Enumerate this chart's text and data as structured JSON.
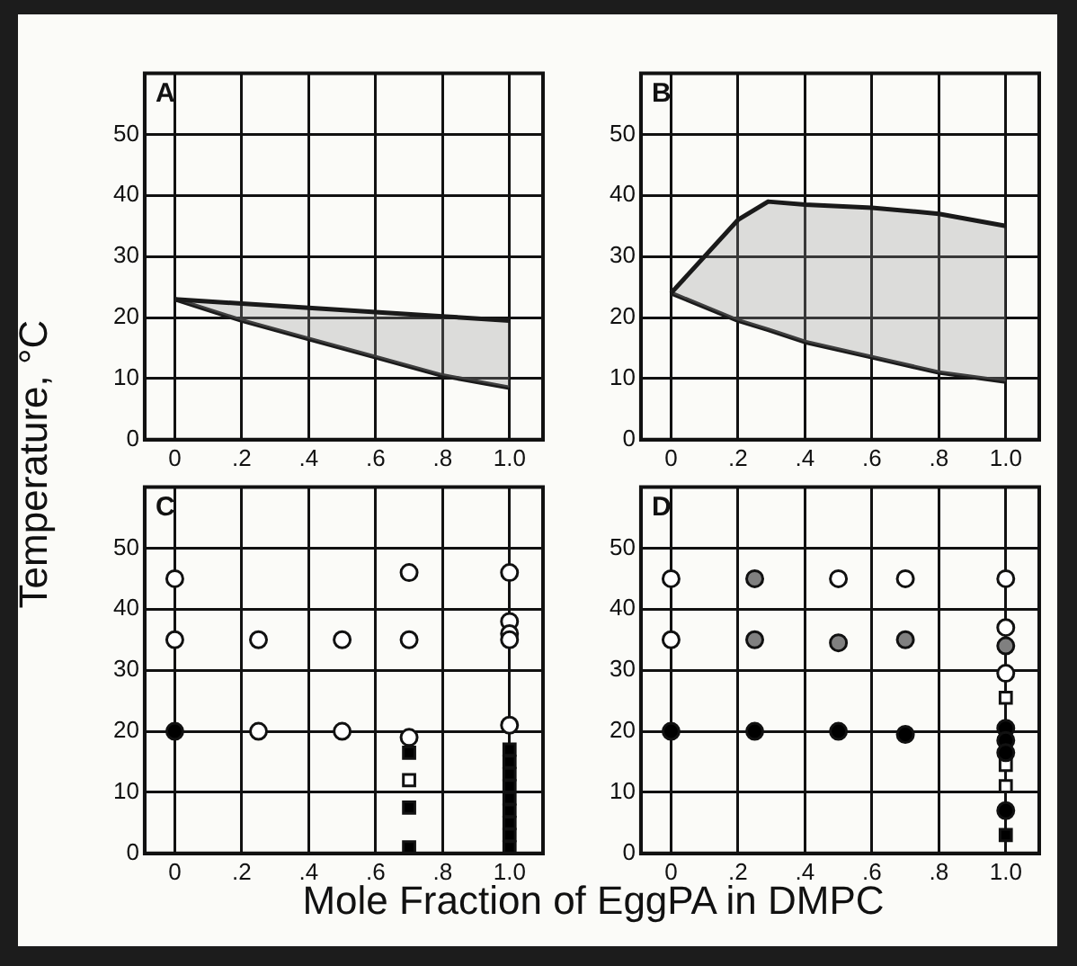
{
  "chart_data": [
    {
      "type": "line",
      "title": "A",
      "ylabel": "Temperature, °C",
      "xlim": [
        -0.09,
        1.1
      ],
      "ylim": [
        0,
        60
      ],
      "xticks": [
        {
          "value": 0,
          "label": "0"
        },
        {
          "value": 0.2,
          "label": ".2"
        },
        {
          "value": 0.4,
          "label": ".4"
        },
        {
          "value": 0.6,
          "label": ".6"
        },
        {
          "value": 0.8,
          "label": ".8"
        },
        {
          "value": 1,
          "label": "1.0"
        }
      ],
      "yticks": [
        0,
        10,
        20,
        30,
        40,
        50
      ],
      "grid": true,
      "legend": false,
      "marker": "none",
      "series": [
        {
          "color": "#1a1a1a",
          "x": [
            0,
            0.2,
            0.4,
            0.6,
            0.8,
            1.0
          ],
          "values": [
            23,
            22.3,
            21.6,
            20.9,
            20.2,
            19.5
          ]
        },
        {
          "color": "#1a1a1a",
          "x": [
            0,
            0.2,
            0.4,
            0.6,
            0.8,
            1.0
          ],
          "values": [
            23,
            19.5,
            16.5,
            13.5,
            10.5,
            8.5
          ],
          "lower": [
            23,
            19.5,
            16.5,
            13.5,
            10.5,
            8.5
          ],
          "upper": [
            23,
            22.3,
            21.6,
            20.9,
            20.2,
            19.5
          ]
        }
      ]
    },
    {
      "type": "line",
      "title": "B",
      "xlim": [
        -0.09,
        1.1
      ],
      "ylim": [
        0,
        60
      ],
      "xticks": [
        {
          "value": 0,
          "label": "0"
        },
        {
          "value": 0.2,
          "label": ".2"
        },
        {
          "value": 0.4,
          "label": ".4"
        },
        {
          "value": 0.6,
          "label": ".6"
        },
        {
          "value": 0.8,
          "label": ".8"
        },
        {
          "value": 1,
          "label": "1.0"
        }
      ],
      "yticks": [
        0,
        10,
        20,
        30,
        40,
        50
      ],
      "grid": true,
      "legend": false,
      "marker": "none",
      "series": [
        {
          "color": "#1a1a1a",
          "x": [
            0,
            0.2,
            0.29,
            0.4,
            0.6,
            0.8,
            1.0
          ],
          "values": [
            24,
            36,
            39,
            38.5,
            38,
            37,
            35
          ]
        },
        {
          "color": "#1a1a1a",
          "x": [
            0,
            0.2,
            0.29,
            0.4,
            0.6,
            0.8,
            1.0
          ],
          "values": [
            24,
            19.5,
            18,
            16,
            13.5,
            11,
            9.5
          ],
          "lower": [
            24,
            19.5,
            18,
            16,
            13.5,
            11,
            9.5
          ],
          "upper": [
            24,
            36,
            39,
            38.5,
            38,
            37,
            35
          ]
        }
      ]
    },
    {
      "type": "scatter",
      "title": "C",
      "xlabel": "Mole Fraction of EggPA in DMPC",
      "xlim": [
        -0.09,
        1.1
      ],
      "ylim": [
        0,
        60
      ],
      "xticks": [
        {
          "value": 0,
          "label": "0"
        },
        {
          "value": 0.2,
          "label": ".2"
        },
        {
          "value": 0.4,
          "label": ".4"
        },
        {
          "value": 0.6,
          "label": ".6"
        },
        {
          "value": 0.8,
          "label": ".8"
        },
        {
          "value": 1,
          "label": "1.0"
        }
      ],
      "yticks": [
        0,
        10,
        20,
        30,
        40,
        50
      ],
      "grid": true,
      "legend": false,
      "series": [
        {
          "marker": "circle",
          "color": "#ffffff",
          "x": [
            0,
            0,
            0.25,
            0.5,
            0.7,
            0.7,
            1,
            1,
            1,
            1,
            1,
            0.25,
            0.5,
            0.7
          ],
          "values": [
            45,
            35,
            35,
            35,
            35,
            46,
            46,
            38,
            36,
            35,
            21,
            20,
            20,
            19
          ]
        },
        {
          "marker": "circle",
          "color": "#000000",
          "x": [
            0
          ],
          "values": [
            20
          ]
        },
        {
          "marker": "square",
          "color": "#000000",
          "x": [
            0.7,
            0.7,
            0.7,
            1,
            1,
            1,
            1,
            1,
            1,
            1,
            1,
            1
          ],
          "values": [
            16.5,
            7.5,
            1,
            1,
            3,
            5,
            7,
            9,
            11,
            13,
            15,
            17
          ]
        },
        {
          "marker": "square",
          "color": "#ffffff",
          "x": [
            0.7
          ],
          "values": [
            12
          ]
        }
      ]
    },
    {
      "type": "scatter",
      "title": "D",
      "xlim": [
        -0.09,
        1.1
      ],
      "ylim": [
        0,
        60
      ],
      "xticks": [
        {
          "value": 0,
          "label": "0"
        },
        {
          "value": 0.2,
          "label": ".2"
        },
        {
          "value": 0.4,
          "label": ".4"
        },
        {
          "value": 0.6,
          "label": ".6"
        },
        {
          "value": 0.8,
          "label": ".8"
        },
        {
          "value": 1,
          "label": "1.0"
        }
      ],
      "yticks": [
        0,
        10,
        20,
        30,
        40,
        50
      ],
      "grid": true,
      "legend": false,
      "series": [
        {
          "marker": "circle",
          "color": "#ffffff",
          "x": [
            0,
            0,
            0.5,
            0.7,
            1,
            1,
            1
          ],
          "values": [
            45,
            35,
            45,
            45,
            45,
            37,
            29.5
          ]
        },
        {
          "marker": "circle",
          "color": "#808080",
          "x": [
            0.25,
            0.25,
            0.5,
            0.7,
            1
          ],
          "values": [
            45,
            35,
            34.5,
            35,
            34
          ]
        },
        {
          "marker": "circle",
          "color": "#000000",
          "x": [
            0,
            0.25,
            0.5,
            0.7,
            1,
            1,
            1,
            1
          ],
          "values": [
            20,
            20,
            20,
            19.5,
            20.5,
            18.5,
            16.5,
            7
          ]
        },
        {
          "marker": "square",
          "color": "#ffffff",
          "x": [
            1,
            1,
            1
          ],
          "values": [
            25.5,
            14.5,
            11
          ]
        },
        {
          "marker": "square",
          "color": "#000000",
          "x": [
            1
          ],
          "values": [
            3
          ]
        }
      ]
    }
  ]
}
